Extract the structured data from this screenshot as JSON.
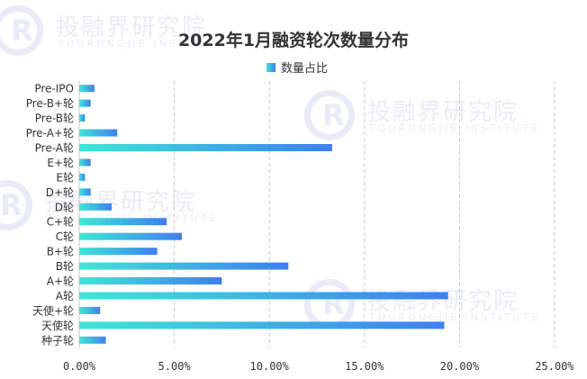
{
  "chart_data": {
    "type": "bar",
    "orientation": "horizontal",
    "title": "2022年1月融资轮次数量分布",
    "legend": {
      "label": "数量占比",
      "position": "top-center"
    },
    "xlim": [
      0,
      25
    ],
    "xticks": [
      "0.00%",
      "5.00%",
      "10.00%",
      "15.00%",
      "20.00%",
      "25.00%"
    ],
    "grid": "vertical-dashed",
    "categories": [
      "Pre-IPO",
      "Pre-B+轮",
      "Pre-B轮",
      "Pre-A+轮",
      "Pre-A轮",
      "E+轮",
      "E轮",
      "D+轮",
      "D轮",
      "C+轮",
      "C轮",
      "B+轮",
      "B轮",
      "A+轮",
      "A轮",
      "天使+轮",
      "天使轮",
      "种子轮"
    ],
    "values": [
      0.8,
      0.6,
      0.3,
      2.0,
      13.3,
      0.6,
      0.3,
      0.6,
      1.7,
      4.6,
      5.4,
      4.1,
      11.0,
      7.5,
      19.4,
      1.1,
      19.2,
      1.4
    ],
    "colors": {
      "bar_start": "#3fe6d6",
      "bar_end": "#3f7ff0"
    }
  },
  "watermark": {
    "text": "投融界研究院",
    "subtext": "TOURONGJIE INSTITUTE"
  }
}
